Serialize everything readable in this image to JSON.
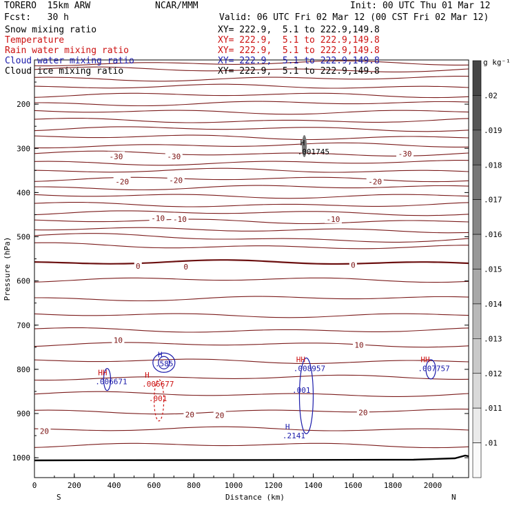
{
  "header": {
    "model": "TORERO  15km ARW",
    "org": "NCAR/MMM",
    "init": "Init: 00 UTC Thu 01 Mar 12",
    "fcst": "Fcst:   30 h",
    "valid": "Valid: 06 UTC Fri 02 Mar 12 (00 CST Fri 02 Mar 12)",
    "fields": [
      {
        "name": "Snow mixing ratio",
        "xy": "XY= 222.9,  5.1 to 222.9,149.8",
        "color": "#000000"
      },
      {
        "name": "Temperature",
        "xy": "XY= 222.9,  5.1 to 222.9,149.8",
        "color": "#cc1111"
      },
      {
        "name": "Rain water mixing ratio",
        "xy": "XY= 222.9,  5.1 to 222.9,149.8",
        "color": "#cc1111"
      },
      {
        "name": "Cloud water mixing ratio",
        "xy": "XY= 222.9,  5.1 to 222.9,149.8",
        "color": "#1a1aaa"
      },
      {
        "name": "Cloud ice mixing ratio",
        "xy": "XY= 222.9,  5.1 to 222.9,149.8",
        "color": "#000000"
      }
    ]
  },
  "chart_data": {
    "type": "contour",
    "xlabel": "Distance (km)",
    "ylabel": "Pressure (hPa)",
    "x_ticks": [
      0,
      200,
      400,
      600,
      800,
      1000,
      1200,
      1400,
      1600,
      1800,
      2000
    ],
    "y_ticks": [
      200,
      300,
      400,
      500,
      600,
      700,
      800,
      900,
      1000
    ],
    "xlim": [
      0,
      2180
    ],
    "ylim": [
      1045,
      100
    ],
    "ends": {
      "left": "S",
      "right": "N"
    },
    "colorbar": {
      "unit": "g kg⁻¹",
      "labels": [
        ".02",
        ".019",
        ".018",
        ".017",
        ".016",
        ".015",
        ".014",
        ".013",
        ".012",
        ".011",
        ".01"
      ]
    },
    "isotherm_labels": [
      {
        "text": "-30",
        "x": 410,
        "p": 318
      },
      {
        "text": "-30",
        "x": 700,
        "p": 318
      },
      {
        "text": "-30",
        "x": 1860,
        "p": 312
      },
      {
        "text": "-20",
        "x": 440,
        "p": 375
      },
      {
        "text": "-20",
        "x": 710,
        "p": 372
      },
      {
        "text": "-20",
        "x": 1710,
        "p": 375
      },
      {
        "text": "-10",
        "x": 620,
        "p": 458
      },
      {
        "text": "-10",
        "x": 730,
        "p": 460
      },
      {
        "text": "-10",
        "x": 1500,
        "p": 460
      },
      {
        "text": "0",
        "x": 520,
        "p": 566
      },
      {
        "text": "0",
        "x": 760,
        "p": 568
      },
      {
        "text": "0",
        "x": 1600,
        "p": 564
      },
      {
        "text": "10",
        "x": 420,
        "p": 734
      },
      {
        "text": "10",
        "x": 1630,
        "p": 745
      },
      {
        "text": "20",
        "x": 780,
        "p": 902
      },
      {
        "text": "20",
        "x": 930,
        "p": 904
      },
      {
        "text": "20",
        "x": 1650,
        "p": 898
      },
      {
        "text": "20",
        "x": 50,
        "p": 940
      }
    ],
    "maxima": [
      {
        "h": "H",
        "value": ".001745",
        "x": 1355,
        "p": 303,
        "color": "#000000"
      },
      {
        "h": "H",
        "value": ".585",
        "x": 640,
        "p": 782,
        "color": "#1a1aaa"
      },
      {
        "h": "HH",
        "value": ".006671",
        "x": 340,
        "p": 823,
        "color": "#1a1aaa",
        "hcolor": "#cc1111"
      },
      {
        "h": "H",
        "value": ".006677",
        "x": 575,
        "p": 828,
        "color": "#cc1111"
      },
      {
        "h": "HH",
        "value": ".008957",
        "x": 1335,
        "p": 793,
        "color": "#1a1aaa",
        "hcolor": "#cc1111"
      },
      {
        "h": "HH",
        "value": ".007757",
        "x": 1960,
        "p": 793,
        "color": "#1a1aaa",
        "hcolor": "#cc1111"
      },
      {
        "h": "H",
        "value": ".2141",
        "x": 1280,
        "p": 945,
        "color": "#1a1aaa"
      }
    ],
    "contour_labels": [
      {
        "text": ".001",
        "x": 620,
        "p": 872,
        "color": "#cc1111"
      },
      {
        "text": ".001",
        "x": 1340,
        "p": 853,
        "color": "#1a1aaa"
      }
    ]
  }
}
